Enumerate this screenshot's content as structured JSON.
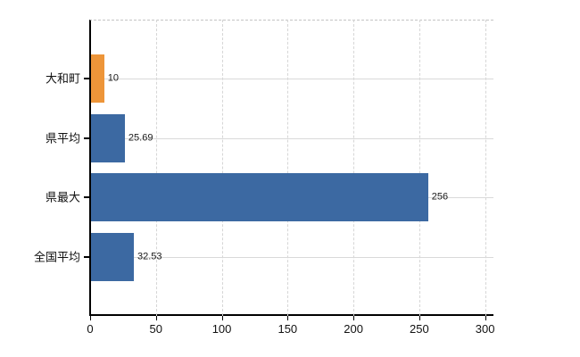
{
  "chart_data": {
    "type": "bar",
    "orientation": "horizontal",
    "title": "",
    "xlabel": "",
    "ylabel": "",
    "categories": [
      "大和町",
      "県平均",
      "県最大",
      "全国平均"
    ],
    "values": [
      10,
      25.69,
      256,
      32.53
    ],
    "value_labels": [
      "10",
      "25.69",
      "256",
      "32.53"
    ],
    "series_colors": [
      "#ed9539",
      "#3c69a2",
      "#3c69a2",
      "#3c69a2"
    ],
    "x_ticks": [
      0,
      50,
      100,
      150,
      200,
      250,
      300
    ],
    "x_tick_labels": [
      "0",
      "50",
      "100",
      "150",
      "200",
      "250",
      "300"
    ],
    "xlim": [
      0,
      307
    ],
    "grid": true,
    "legend": false
  },
  "colors": {
    "bar_blue": "#3c69a2",
    "bar_orange": "#ed9539",
    "axis": "#000000",
    "gridline": "#d9d9d9",
    "plot_top_border": "#c4c4c4",
    "text": "#111111",
    "background": "#ffffff"
  }
}
